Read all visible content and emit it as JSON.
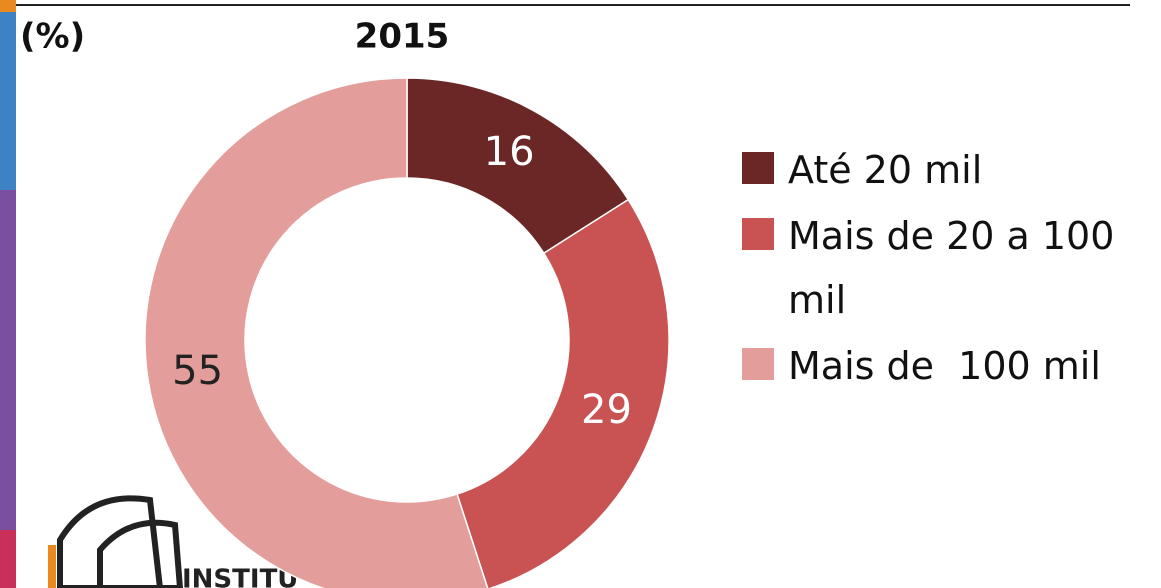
{
  "chart_data": {
    "type": "donut",
    "title": "2015",
    "unit_label": "(%)",
    "categories": [
      "Até 20 mil",
      "Mais de 20 a 100 mil",
      "Mais de  100 mil"
    ],
    "values": [
      16,
      29,
      55
    ],
    "colors": [
      "#6b2626",
      "#c95352",
      "#e39e9c"
    ],
    "label_colors": [
      "#ffffff",
      "#ffffff",
      "#222222"
    ],
    "legend": "right"
  },
  "logo_text": "INSTITU"
}
